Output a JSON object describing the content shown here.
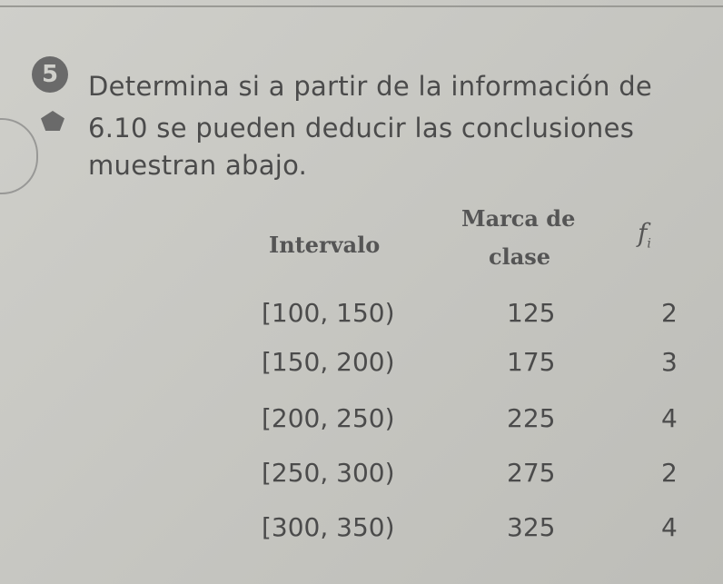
{
  "exercise": {
    "number": "5",
    "lines": [
      "Determina si a partir de la información de",
      "6.10 se pueden deducir las conclusiones",
      "muestran abajo."
    ]
  },
  "table": {
    "headers": {
      "interval": "Intervalo",
      "class_mark_1": "Marca de",
      "class_mark_2": "clase",
      "freq": "f",
      "freq_sub": "i"
    },
    "rows": [
      {
        "interval": "[100, 150)",
        "mark": "125",
        "f": "2"
      },
      {
        "interval": "[150, 200)",
        "mark": "175",
        "f": "3"
      },
      {
        "interval": "[200, 250)",
        "mark": "225",
        "f": "4"
      },
      {
        "interval": "[250, 300)",
        "mark": "275",
        "f": "2"
      },
      {
        "interval": "[300, 350)",
        "mark": "325",
        "f": "4"
      }
    ]
  }
}
